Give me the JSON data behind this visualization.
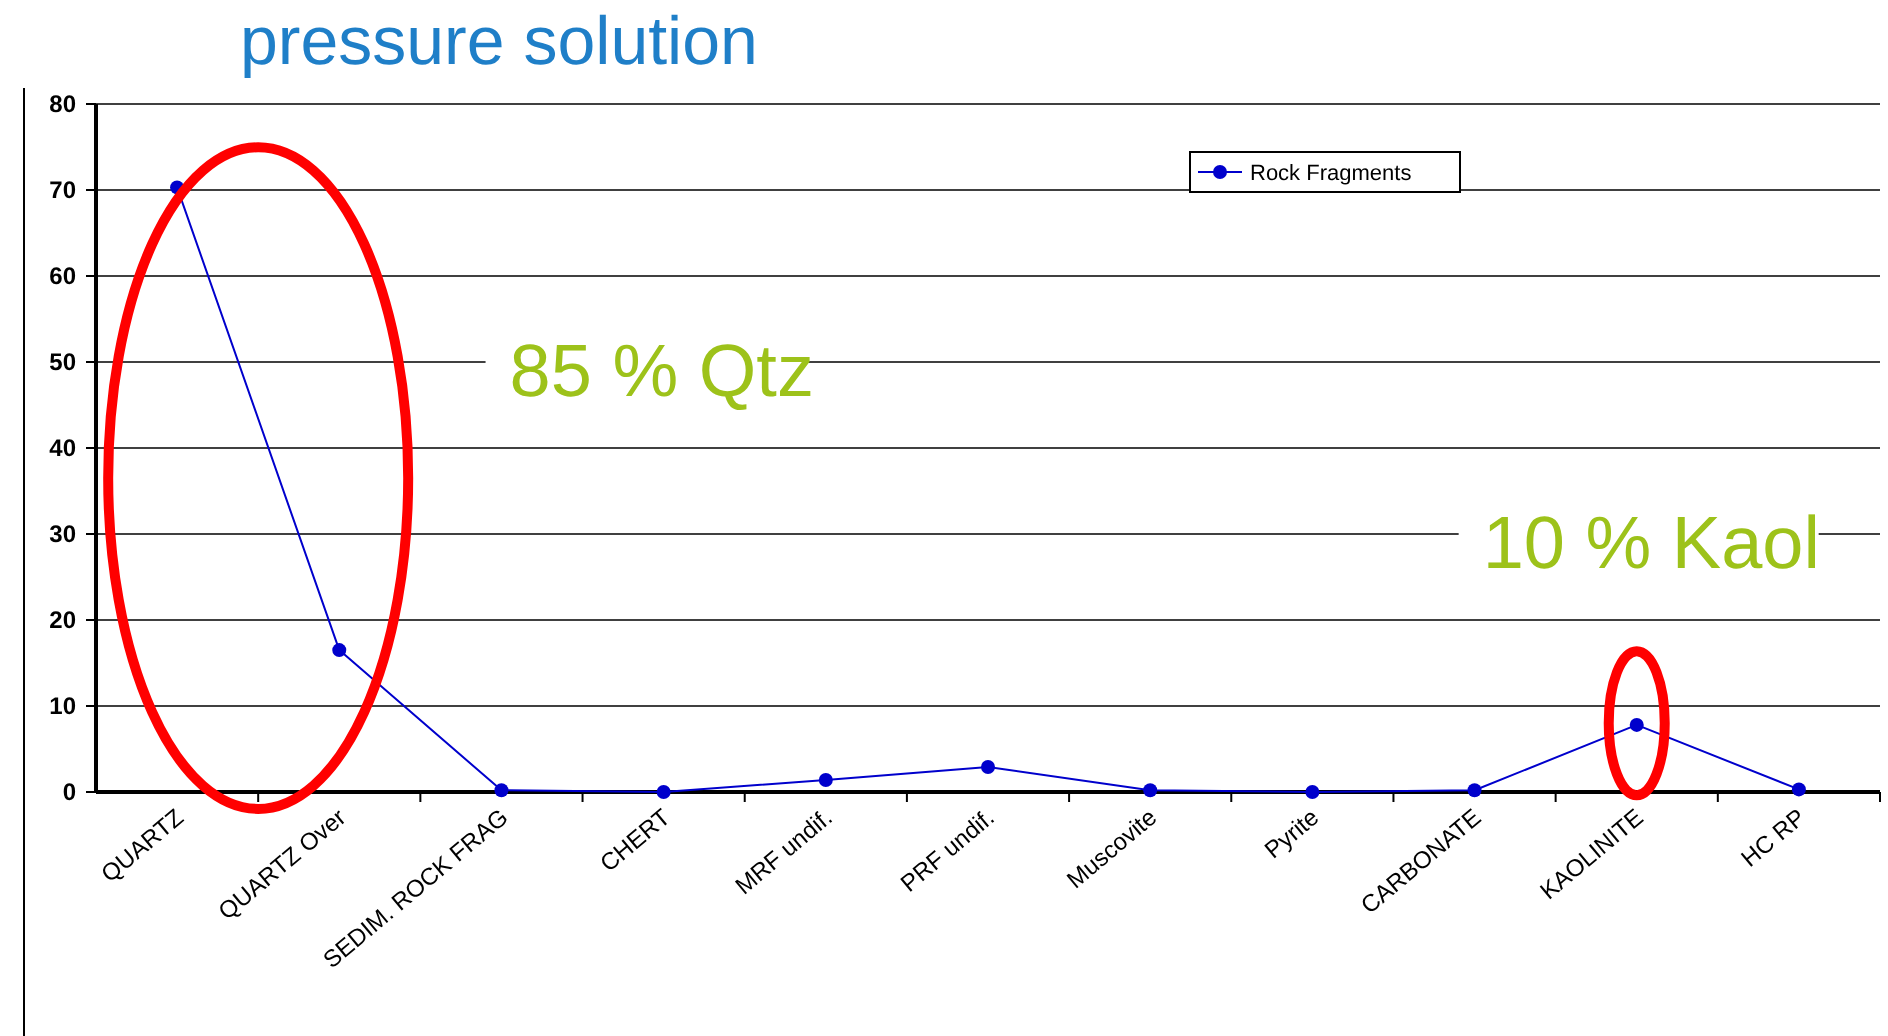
{
  "chart_data": {
    "type": "line",
    "title": "pressure solution",
    "categories": [
      "QUARTZ",
      "QUARTZ Over",
      "SEDIM. ROCK FRAG",
      "CHERT",
      "MRF undif.",
      "PRF undif.",
      "Muscovite",
      "Pyrite",
      "CARBONATE",
      "KAOLINITE",
      "HC RP"
    ],
    "series": [
      {
        "name": "Rock Fragments",
        "color": "#0000cc",
        "values": [
          70.3,
          16.5,
          0.2,
          0,
          1.4,
          2.9,
          0.2,
          0,
          0.2,
          7.8,
          0.3
        ]
      }
    ],
    "ylim": [
      0,
      80
    ],
    "yticks": [
      0,
      10,
      20,
      30,
      40,
      50,
      60,
      70,
      80
    ],
    "grid": "y",
    "legend": "top right",
    "marker": "circle",
    "line_style": "solid",
    "annotations": [
      "85 % Qtz",
      "10 % Kaol"
    ]
  }
}
